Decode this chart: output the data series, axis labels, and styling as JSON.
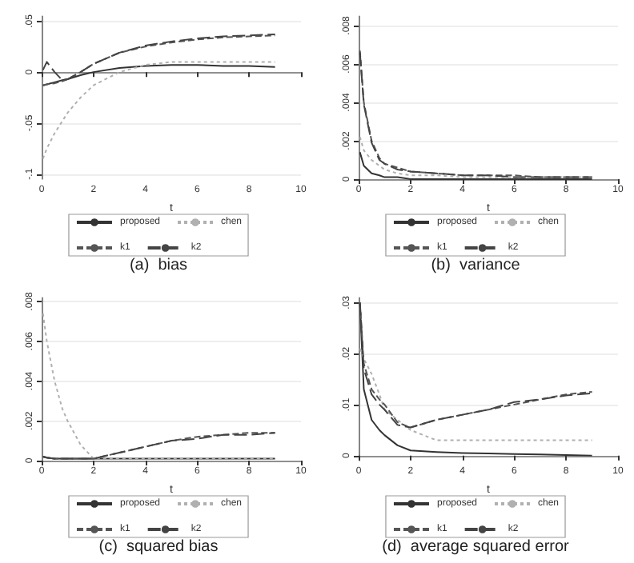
{
  "chart_data": [
    {
      "type": "line",
      "title": "(a)  bias",
      "xlabel": "t",
      "x": [
        0.05,
        0.2,
        0.5,
        0.8,
        1,
        1.5,
        2,
        3,
        4,
        5,
        6,
        7,
        8,
        9
      ],
      "xlim": [
        0,
        10
      ],
      "xticks": [
        0,
        2,
        4,
        6,
        8,
        10
      ],
      "ylim": [
        -0.105,
        0.055
      ],
      "yticks": [
        {
          "value": 0.05,
          "label": ".05"
        },
        {
          "value": 0,
          "label": "0"
        },
        {
          "value": -0.05,
          "label": "-.05"
        },
        {
          "value": -0.1,
          "label": "-.1"
        }
      ],
      "grid": "y",
      "legend": "bottom",
      "series": [
        {
          "name": "proposed",
          "color": "#333333",
          "line_style": "solid",
          "values": [
            -0.013,
            -0.012,
            -0.01,
            -0.008,
            -0.007,
            -0.003,
            0,
            0.004,
            0.006,
            0.007,
            0.007,
            0.006,
            0.006,
            0.005
          ]
        },
        {
          "name": "chen",
          "color": "#b0b0b0",
          "line_style": "dotted",
          "values": [
            -0.085,
            -0.075,
            -0.06,
            -0.048,
            -0.04,
            -0.025,
            -0.013,
            0,
            0.007,
            0.01,
            0.01,
            0.01,
            0.01,
            0.01
          ]
        },
        {
          "name": "k1",
          "color": "#555555",
          "line_style": "dashed",
          "values": [
            -0.013,
            -0.012,
            -0.011,
            -0.009,
            -0.007,
            0,
            0.008,
            0.019,
            0.025,
            0.029,
            0.032,
            0.034,
            0.035,
            0.036
          ]
        },
        {
          "name": "k2",
          "color": "#444444",
          "line_style": "dashed",
          "values": [
            0.002,
            0.01,
            0,
            -0.008,
            -0.007,
            0,
            0.008,
            0.019,
            0.026,
            0.03,
            0.033,
            0.035,
            0.036,
            0.037
          ]
        }
      ]
    },
    {
      "type": "line",
      "title": "(b)  variance",
      "xlabel": "t",
      "x": [
        0.05,
        0.2,
        0.5,
        0.8,
        1,
        1.5,
        2,
        3,
        4,
        5,
        6,
        7,
        8,
        9
      ],
      "xlim": [
        0,
        10
      ],
      "xticks": [
        0,
        2,
        4,
        6,
        8,
        10
      ],
      "ylim": [
        0,
        0.0085
      ],
      "yticks": [
        {
          "value": 0,
          "label": "0"
        },
        {
          "value": 0.002,
          "label": ".002"
        },
        {
          "value": 0.004,
          "label": ".004"
        },
        {
          "value": 0.006,
          "label": ".006"
        },
        {
          "value": 0.008,
          "label": ".008"
        }
      ],
      "grid": "y",
      "legend": "bottom",
      "series": [
        {
          "name": "proposed",
          "color": "#333333",
          "line_style": "solid",
          "values": [
            0.0014,
            0.0007,
            0.0003,
            0.0002,
            0.0001,
            0.0001,
            0,
            0,
            0,
            0,
            0,
            0,
            0,
            0
          ]
        },
        {
          "name": "chen",
          "color": "#b0b0b0",
          "line_style": "dotted",
          "values": [
            0.0022,
            0.0015,
            0.001,
            0.0007,
            0.0005,
            0.0003,
            0.0002,
            0.0002,
            0.0001,
            0.0001,
            0.0001,
            0.0001,
            0.0001,
            0.0001
          ]
        },
        {
          "name": "k1",
          "color": "#555555",
          "line_style": "dashed",
          "values": [
            0.0067,
            0.004,
            0.002,
            0.0011,
            0.0008,
            0.0006,
            0.0004,
            0.0003,
            0.0002,
            0.0002,
            0.0002,
            0.0001,
            0.0001,
            0.0001
          ]
        },
        {
          "name": "k2",
          "color": "#444444",
          "line_style": "dashed",
          "values": [
            0.0066,
            0.0039,
            0.0019,
            0.001,
            0.0008,
            0.0005,
            0.0004,
            0.0003,
            0.0002,
            0.0002,
            0.0001,
            0.0001,
            0.0001,
            0.0001
          ]
        }
      ]
    },
    {
      "type": "line",
      "title": "(c)  squared bias",
      "xlabel": "t",
      "x": [
        0.05,
        0.2,
        0.5,
        0.8,
        1,
        1.5,
        2,
        3,
        4,
        5,
        6,
        7,
        8,
        9
      ],
      "xlim": [
        0,
        10
      ],
      "xticks": [
        0,
        2,
        4,
        6,
        8,
        10
      ],
      "ylim": [
        0,
        0.0082
      ],
      "yticks": [
        {
          "value": 0,
          "label": "0"
        },
        {
          "value": 0.002,
          "label": ".002"
        },
        {
          "value": 0.004,
          "label": ".004"
        },
        {
          "value": 0.006,
          "label": ".006"
        },
        {
          "value": 0.008,
          "label": ".008"
        }
      ],
      "grid": "y",
      "legend": "bottom",
      "series": [
        {
          "name": "proposed",
          "color": "#333333",
          "line_style": "solid",
          "values": [
            0.0002,
            0.00015,
            0.0001,
            0.0001,
            0.0001,
            0.0001,
            0.0001,
            0.0001,
            0.0001,
            0.0001,
            0.0001,
            0.0001,
            0.0001,
            0.0001
          ]
        },
        {
          "name": "chen",
          "color": "#b0b0b0",
          "line_style": "dotted",
          "values": [
            0.0074,
            0.006,
            0.004,
            0.0026,
            0.002,
            0.0008,
            0.0001,
            0.0001,
            0.0001,
            0.0001,
            0.0001,
            0.0001,
            0.0001,
            0.0001
          ]
        },
        {
          "name": "k1",
          "color": "#555555",
          "line_style": "dashed",
          "values": [
            0.0002,
            0.00015,
            0.0001,
            0.0001,
            0.0001,
            0.0001,
            0.0001,
            0.0004,
            0.0007,
            0.001,
            0.0012,
            0.0013,
            0.0014,
            0.0014
          ]
        },
        {
          "name": "k2",
          "color": "#444444",
          "line_style": "dashed",
          "values": [
            0.0002,
            0.00015,
            0.0001,
            0.0001,
            0.0001,
            0.0001,
            0.0001,
            0.0004,
            0.0007,
            0.001,
            0.0011,
            0.0013,
            0.0013,
            0.0014
          ]
        }
      ]
    },
    {
      "type": "line",
      "title": "(d)  average squared error",
      "xlabel": "t",
      "x": [
        0.05,
        0.2,
        0.5,
        0.8,
        1,
        1.5,
        2,
        3,
        4,
        5,
        6,
        7,
        8,
        9
      ],
      "xlim": [
        0,
        10
      ],
      "xticks": [
        0,
        2,
        4,
        6,
        8,
        10
      ],
      "ylim": [
        -0.001,
        0.031
      ],
      "yticks": [
        {
          "value": 0,
          "label": "0"
        },
        {
          "value": 0.01,
          "label": ".01"
        },
        {
          "value": 0.02,
          "label": ".02"
        },
        {
          "value": 0.03,
          "label": ".03"
        }
      ],
      "grid": "y",
      "legend": "bottom",
      "series": [
        {
          "name": "proposed",
          "color": "#333333",
          "line_style": "solid",
          "values": [
            0.03,
            0.013,
            0.007,
            0.005,
            0.004,
            0.002,
            0.001,
            0.0007,
            0.0005,
            0.0004,
            0.0003,
            0.0002,
            0.0001,
            0
          ]
        },
        {
          "name": "chen",
          "color": "#b0b0b0",
          "line_style": "dotted",
          "values": [
            0.021,
            0.019,
            0.016,
            0.012,
            0.009,
            0.007,
            0.005,
            0.003,
            0.003,
            0.003,
            0.003,
            0.003,
            0.003,
            0.003
          ]
        },
        {
          "name": "k1",
          "color": "#555555",
          "line_style": "dashed",
          "values": [
            0.03,
            0.018,
            0.013,
            0.011,
            0.01,
            0.0065,
            0.0055,
            0.007,
            0.008,
            0.009,
            0.01,
            0.011,
            0.012,
            0.0125
          ]
        },
        {
          "name": "k2",
          "color": "#444444",
          "line_style": "dashed",
          "values": [
            0.03,
            0.017,
            0.012,
            0.01,
            0.009,
            0.006,
            0.0055,
            0.007,
            0.008,
            0.009,
            0.0105,
            0.011,
            0.0118,
            0.0122
          ]
        }
      ]
    }
  ]
}
